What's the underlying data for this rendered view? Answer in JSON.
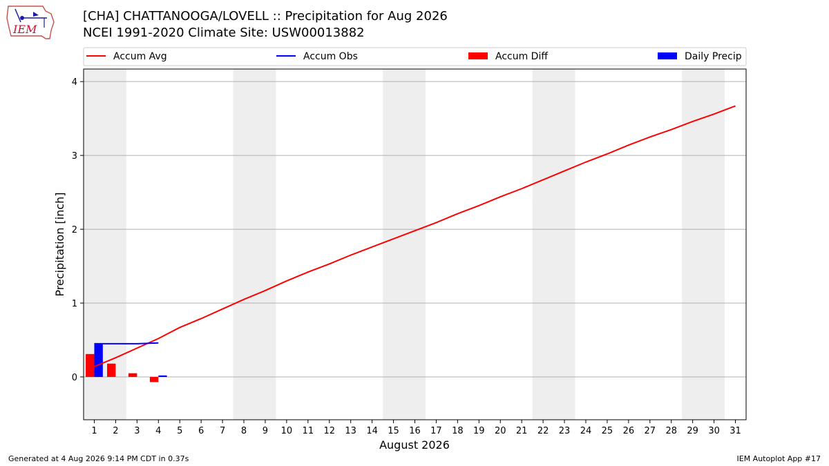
{
  "header": {
    "logo_text": "IEM",
    "title": "[CHA] CHATTANOOGA/LOVELL :: Precipitation for Aug 2026",
    "subtitle": "NCEI 1991-2020 Climate Site: USW00013882"
  },
  "footer": {
    "generated": "Generated at 4 Aug 2026 9:14 PM CDT in 0.37s",
    "app": "IEM Autoplot App #17"
  },
  "colors": {
    "avg": "#ff0000",
    "obs": "#0000ff",
    "diff": "#ff0000",
    "daily": "#0000ff",
    "weekend_band": "#eeeeee",
    "grid": "#b0b0b0"
  },
  "chart_data": {
    "type": "bar",
    "xlabel": "August 2026",
    "ylabel": "Precipitation [inch]",
    "xlim": [
      0.5,
      31.5
    ],
    "ylim": [
      -0.58,
      4.17
    ],
    "x_ticks": [
      1,
      2,
      3,
      4,
      5,
      6,
      7,
      8,
      9,
      10,
      11,
      12,
      13,
      14,
      15,
      16,
      17,
      18,
      19,
      20,
      21,
      22,
      23,
      24,
      25,
      26,
      27,
      28,
      29,
      30,
      31
    ],
    "y_ticks": [
      0,
      1,
      2,
      3,
      4
    ],
    "grid": "y-major",
    "legend_position": "top",
    "legend": [
      {
        "label": "Accum Avg",
        "kind": "line",
        "color": "#ff0000"
      },
      {
        "label": "Accum Obs",
        "kind": "line",
        "color": "#0000ff"
      },
      {
        "label": "Accum Diff",
        "kind": "bar",
        "color": "#ff0000"
      },
      {
        "label": "Daily Precip",
        "kind": "bar",
        "color": "#0000ff"
      }
    ],
    "weekend_bands": [
      [
        0.5,
        2.5
      ],
      [
        7.5,
        9.5
      ],
      [
        14.5,
        16.5
      ],
      [
        21.5,
        23.5
      ],
      [
        28.5,
        30.5
      ]
    ],
    "series": [
      {
        "name": "Accum Avg",
        "type": "line",
        "x": [
          1,
          2,
          3,
          4,
          5,
          6,
          7,
          8,
          9,
          10,
          11,
          12,
          13,
          14,
          15,
          16,
          17,
          18,
          19,
          20,
          21,
          22,
          23,
          24,
          25,
          26,
          27,
          28,
          29,
          30,
          31
        ],
        "values": [
          0.14,
          0.26,
          0.39,
          0.52,
          0.67,
          0.79,
          0.92,
          1.05,
          1.17,
          1.3,
          1.42,
          1.53,
          1.65,
          1.76,
          1.87,
          1.98,
          2.09,
          2.21,
          2.32,
          2.44,
          2.55,
          2.67,
          2.79,
          2.91,
          3.02,
          3.14,
          3.25,
          3.35,
          3.46,
          3.56,
          3.67
        ]
      },
      {
        "name": "Accum Obs",
        "type": "line",
        "x": [
          1,
          2,
          3,
          4
        ],
        "values": [
          0.45,
          0.45,
          0.45,
          0.46
        ]
      },
      {
        "name": "Accum Diff",
        "type": "bar",
        "x": [
          1,
          2,
          3,
          4
        ],
        "values": [
          0.31,
          0.18,
          0.05,
          -0.07
        ]
      },
      {
        "name": "Daily Precip",
        "type": "bar",
        "x": [
          1,
          2,
          3,
          4
        ],
        "values": [
          0.45,
          0.0,
          0.0,
          0.02
        ]
      }
    ]
  }
}
